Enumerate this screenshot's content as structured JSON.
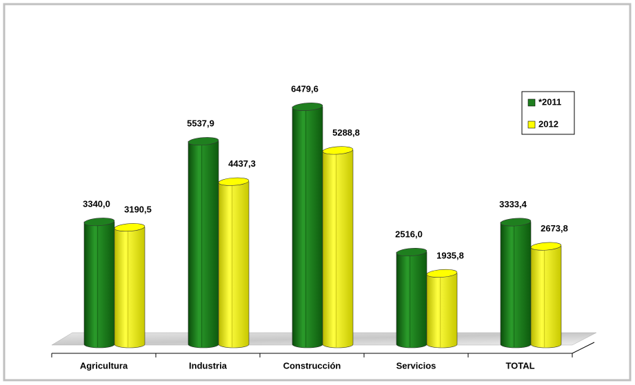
{
  "chart_data": {
    "type": "bar",
    "categories": [
      "Agricultura",
      "Industria",
      "Construcción",
      "Servicios",
      "TOTAL"
    ],
    "series": [
      {
        "name": "*2011",
        "color": "#1f7f1f",
        "values": [
          3340.0,
          5537.9,
          6479.6,
          2516.0,
          3333.4
        ],
        "value_labels": [
          "3340,0",
          "5537,9",
          "6479,6",
          "2516,0",
          "3333,4"
        ]
      },
      {
        "name": "2012",
        "color": "#ffff00",
        "values": [
          3190.5,
          4437.3,
          5288.8,
          1935.8,
          2673.8
        ],
        "value_labels": [
          "3190,5",
          "4437,3",
          "5288,8",
          "1935,8",
          "2673,8"
        ]
      }
    ],
    "legend": "top-right"
  }
}
